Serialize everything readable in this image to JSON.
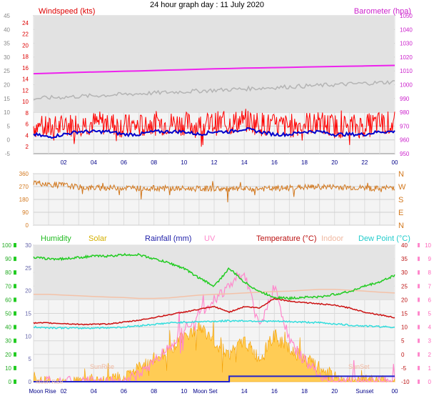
{
  "title": "24 hour graph day : 11 July 2020",
  "colors": {
    "windspeed": "#ff0000",
    "wind_avg": "#0000cc",
    "barometer": "#ee22ee",
    "baro_grey": "#b4b4b4",
    "direction": "#d2781e",
    "humidity": "#22cc22",
    "solar": "#ffcc55",
    "rainfall": "#2222cc",
    "uv": "#ff88cc",
    "temperature": "#cc1111",
    "indoor": "#f4c2a8",
    "dewpoint": "#33dddd"
  },
  "hour_labels": [
    "02",
    "04",
    "06",
    "08",
    "10",
    "12",
    "14",
    "16",
    "18",
    "20",
    "22",
    "00"
  ],
  "panel1": {
    "left_label": "Windspeed (kts)",
    "right_label": "Barometer (hpa)",
    "left_outer_ticks": [
      "45",
      "40",
      "35",
      "30",
      "25",
      "20",
      "15",
      "10",
      "5",
      "0",
      "-5"
    ],
    "left_inner_ticks": [
      "24",
      "22",
      "20",
      "18",
      "16",
      "14",
      "12",
      "10",
      "8",
      "6",
      "4",
      "2"
    ],
    "right_ticks": [
      "1050",
      "1040",
      "1030",
      "1020",
      "1010",
      "1000",
      "990",
      "980",
      "970",
      "960",
      "950"
    ]
  },
  "panel2": {
    "left_ticks": [
      "360",
      "270",
      "180",
      "90",
      "0"
    ],
    "right_ticks": [
      "N",
      "W",
      "S",
      "E",
      "N"
    ]
  },
  "panel3": {
    "legend": {
      "humidity": "Humidity",
      "solar": "Solar",
      "rainfall": "Rainfall (mm)",
      "uv": "UV",
      "temperature": "Temperature (°C)",
      "indoor": "Indoor",
      "dewpoint": "Dew Point (°C)"
    },
    "humidity_ticks": [
      "100",
      "90",
      "80",
      "70",
      "60",
      "50",
      "40",
      "30",
      "20",
      "10",
      "0"
    ],
    "left_inner_ticks": [
      "30",
      "25",
      "20",
      "15",
      "10",
      "5",
      "0"
    ],
    "temp_ticks": [
      "40",
      "35",
      "30",
      "25",
      "20",
      "15",
      "10",
      "5",
      "0",
      "-5",
      "-10"
    ],
    "uv_ticks": [
      "10",
      "9",
      "8",
      "7",
      "6",
      "5",
      "4",
      "3",
      "2",
      "1",
      "0"
    ],
    "events": {
      "sunrise": "SunRise",
      "sunset": "SunSet",
      "moonrise": "Moon Rise",
      "moonset": "Moon Set",
      "moonrise_faint": "Moon Rise"
    },
    "bottom_labels": [
      "Moon Rise",
      "02",
      "04",
      "06",
      "08",
      "10",
      "Moon Set",
      "14",
      "16",
      "18",
      "20",
      "Sunset",
      "00"
    ]
  },
  "chart_data": [
    {
      "type": "line",
      "title": "24 hour graph day : 11 July 2020",
      "x_hours": [
        0,
        1,
        2,
        3,
        4,
        5,
        6,
        7,
        8,
        9,
        10,
        11,
        12,
        13,
        14,
        15,
        16,
        17,
        18,
        19,
        20,
        21,
        22,
        23,
        24
      ],
      "series": [
        {
          "name": "Windspeed (kts)",
          "axis": "left",
          "values": [
            5,
            4,
            5,
            6,
            6,
            6,
            5,
            5,
            6,
            6,
            6,
            5,
            6,
            6,
            7,
            6,
            5,
            5,
            6,
            6,
            5,
            5,
            5,
            6,
            6
          ]
        },
        {
          "name": "Barometer (hpa)",
          "axis": "right",
          "values": [
            1008,
            1008.3,
            1008.6,
            1008.9,
            1009.2,
            1009.5,
            1009.8,
            1010,
            1010.3,
            1010.6,
            1010.9,
            1011.2,
            1011.5,
            1011.7,
            1012,
            1012.2,
            1012.4,
            1012.6,
            1012.8,
            1013,
            1013.2,
            1013.4,
            1013.6,
            1013.8,
            1014
          ]
        }
      ],
      "ylim_left": [
        -5,
        45
      ],
      "ylim_right": [
        950,
        1050
      ],
      "grid": true
    },
    {
      "type": "line",
      "x_hours": [
        0,
        1,
        2,
        3,
        4,
        5,
        6,
        7,
        8,
        9,
        10,
        11,
        12,
        13,
        14,
        15,
        16,
        17,
        18,
        19,
        20,
        21,
        22,
        23,
        24
      ],
      "series": [
        {
          "name": "Wind direction",
          "values": [
            300,
            285,
            280,
            265,
            260,
            262,
            262,
            258,
            258,
            257,
            255,
            255,
            258,
            250,
            252,
            255,
            255,
            262,
            265,
            268,
            268,
            264,
            260,
            255,
            265
          ]
        }
      ],
      "ylim": [
        0,
        360
      ],
      "grid": true
    },
    {
      "type": "line",
      "x_hours": [
        0,
        1,
        2,
        3,
        4,
        5,
        6,
        7,
        8,
        9,
        10,
        11,
        12,
        13,
        14,
        15,
        16,
        17,
        18,
        19,
        20,
        21,
        22,
        23,
        24
      ],
      "series": [
        {
          "name": "Humidity",
          "axis": "humidity",
          "values": [
            91,
            90,
            90,
            91,
            92,
            92,
            93,
            93,
            90,
            87,
            83,
            76,
            70,
            83,
            73,
            66,
            62,
            61,
            62,
            62,
            64,
            66,
            70,
            73,
            78
          ]
        },
        {
          "name": "Solar",
          "axis": "left",
          "values": [
            0,
            0,
            0,
            0,
            0,
            0,
            1,
            3,
            5,
            7,
            10,
            12,
            9,
            6,
            9,
            5,
            10,
            7,
            5,
            3,
            1,
            0,
            0,
            0,
            0
          ]
        },
        {
          "name": "Rainfall (mm)",
          "axis": "left",
          "values": [
            0,
            0,
            0,
            0,
            0,
            0,
            0,
            0,
            0,
            0,
            0,
            0,
            0,
            1.2,
            1.2,
            1.2,
            1.2,
            1.2,
            1.2,
            1.2,
            1.2,
            1.2,
            1.2,
            1.2,
            1.2
          ]
        },
        {
          "name": "UV",
          "axis": "uv",
          "values": [
            0,
            0,
            0,
            0,
            0,
            0,
            0,
            0.5,
            1.5,
            2.5,
            4,
            5,
            6,
            7,
            8,
            4,
            7,
            3,
            1.5,
            0.5,
            0,
            0,
            0,
            0,
            0
          ]
        },
        {
          "name": "Temperature (°C)",
          "axis": "temp",
          "values": [
            11.5,
            11.5,
            11.3,
            11,
            11,
            11.2,
            11.8,
            12.5,
            13.5,
            14.5,
            15.5,
            16.5,
            17.5,
            15.5,
            17.5,
            17,
            20.5,
            19.5,
            19,
            18.5,
            18,
            17,
            15.5,
            14.5,
            13.5
          ]
        },
        {
          "name": "Indoor",
          "axis": "temp",
          "values": [
            22,
            22,
            21.7,
            21.5,
            21.2,
            21,
            20.8,
            20.5,
            20.5,
            20.7,
            21.2,
            21.7,
            22,
            22.2,
            22.5,
            22.8,
            23,
            23.2,
            23.5,
            23.8,
            23.8,
            23.5,
            23.2,
            22.8,
            22.5
          ]
        },
        {
          "name": "Dew Point (°C)",
          "axis": "temp",
          "values": [
            10,
            9.8,
            9.7,
            9.6,
            9.7,
            9.8,
            10,
            10.5,
            11,
            11.5,
            11.8,
            12,
            12.1,
            12.3,
            12.3,
            12.2,
            12.1,
            12,
            11.8,
            11.6,
            11.2,
            10.7,
            10.4,
            10.2,
            10
          ]
        }
      ],
      "ylim_humidity": [
        0,
        100
      ],
      "ylim_temp": [
        -10,
        40
      ],
      "ylim_uv": [
        0,
        10
      ],
      "ylim_left": [
        0,
        30
      ],
      "grid": true
    }
  ]
}
